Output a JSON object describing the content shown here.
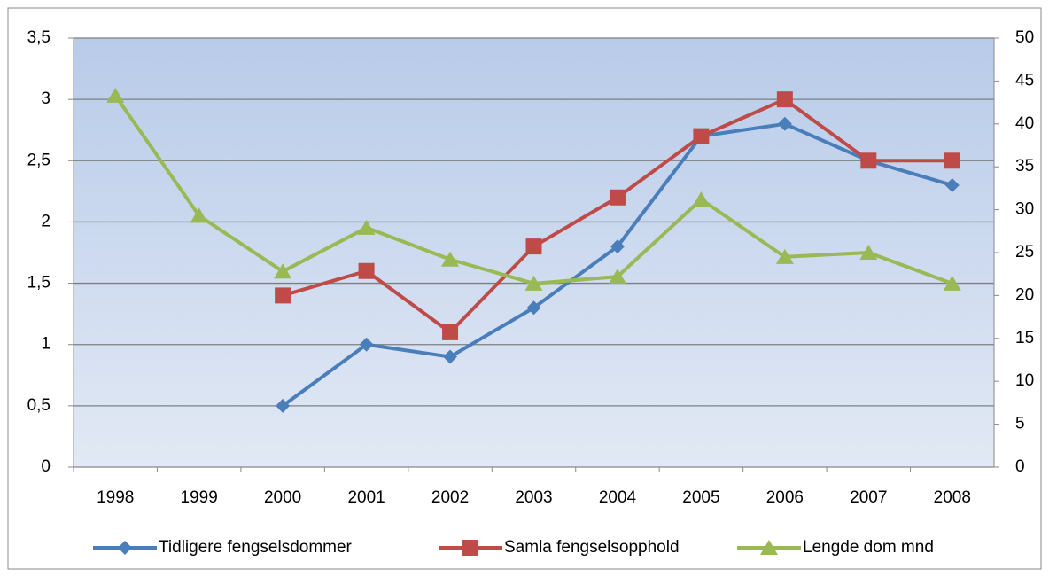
{
  "chart_data": {
    "type": "line",
    "categories": [
      "1998",
      "1999",
      "2000",
      "2001",
      "2002",
      "2003",
      "2004",
      "2005",
      "2006",
      "2007",
      "2008"
    ],
    "series": [
      {
        "name": "Tidligere fengselsdommer",
        "color": "#4a7ebb",
        "marker": "diamond",
        "values": [
          null,
          null,
          0.5,
          1.0,
          0.9,
          1.3,
          1.8,
          2.7,
          2.8,
          2.5,
          2.3
        ]
      },
      {
        "name": "Samla fengselsopphold",
        "color": "#be4b48",
        "marker": "square",
        "values": [
          null,
          null,
          1.4,
          1.6,
          1.1,
          1.8,
          2.2,
          2.7,
          3.0,
          2.5,
          2.5
        ]
      },
      {
        "name": "Lengde dom mnd",
        "color": "#98b954",
        "marker": "triangle",
        "axis": "y2",
        "values": [
          43.3,
          29.3,
          22.8,
          27.9,
          24.2,
          21.4,
          22.2,
          31.2,
          24.5,
          25,
          21.4
        ]
      }
    ],
    "ylim": [
      0,
      3.5
    ],
    "yticks": [
      0,
      {
        "value": 0.5,
        "label": "0,5"
      },
      1,
      {
        "value": 1.5,
        "label": "1,5"
      },
      2,
      {
        "value": 2.5,
        "label": "2,5"
      },
      3,
      {
        "value": 3.5,
        "label": "3,5"
      }
    ],
    "y2lim": [
      0,
      50
    ],
    "y2ticks": [
      0,
      5,
      10,
      15,
      20,
      25,
      30,
      35,
      40,
      45,
      50
    ],
    "grid": true,
    "legend": "bottom"
  }
}
